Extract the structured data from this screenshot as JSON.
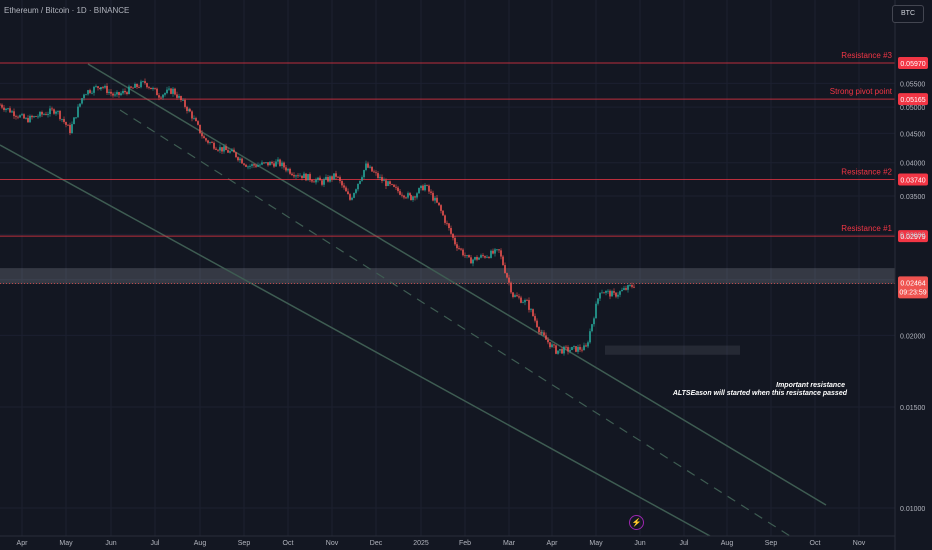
{
  "header": {
    "title": "Ethereum / Bitcoin · 1D · BINANCE",
    "currency_button": "BTC"
  },
  "chart_data": {
    "type": "candlestick",
    "title": "Ethereum / Bitcoin · 1D · BINANCE",
    "y_scale": "log",
    "ylim": [
      0.01,
      0.062
    ],
    "y_ticks": [
      "0.05500",
      "0.05000",
      "0.04500",
      "0.04000",
      "0.03500",
      "0.03000",
      "0.02500",
      "0.02000",
      "0.01500",
      "0.01000"
    ],
    "x_ticks": [
      "Apr",
      "May",
      "Jun",
      "Jul",
      "Aug",
      "Sep",
      "Oct",
      "Nov",
      "Dec",
      "2025",
      "Feb",
      "Mar",
      "Apr",
      "May",
      "Jun",
      "Jul",
      "Aug",
      "Sep",
      "Oct",
      "Nov"
    ],
    "price_path": [
      [
        "Apr",
        0.0505
      ],
      [
        "Apr",
        0.0475
      ],
      [
        "May",
        0.0495
      ],
      [
        "May",
        0.0455
      ],
      [
        "May",
        0.053
      ],
      [
        "Jun",
        0.0545
      ],
      [
        "Jun",
        0.0522
      ],
      [
        "Jul",
        0.0552
      ],
      [
        "Jul",
        0.0525
      ],
      [
        "Jul",
        0.0535
      ],
      [
        "Aug",
        0.049
      ],
      [
        "Aug",
        0.044
      ],
      [
        "Aug",
        0.0425
      ],
      [
        "Sep",
        0.0415
      ],
      [
        "Sep",
        0.0395
      ],
      [
        "Oct",
        0.04
      ],
      [
        "Oct",
        0.0385
      ],
      [
        "Nov",
        0.037
      ],
      [
        "Nov",
        0.038
      ],
      [
        "Nov",
        0.0345
      ],
      [
        "Dec",
        0.0395
      ],
      [
        "Dec",
        0.0375
      ],
      [
        "Dec",
        0.036
      ],
      [
        "2025",
        0.0348
      ],
      [
        "2025",
        0.0365
      ],
      [
        "2025",
        0.0335
      ],
      [
        "Feb",
        0.029
      ],
      [
        "Feb",
        0.027
      ],
      [
        "Mar",
        0.028
      ],
      [
        "Mar",
        0.0235
      ],
      [
        "Mar",
        0.0228
      ],
      [
        "Apr",
        0.02
      ],
      [
        "Apr",
        0.0188
      ],
      [
        "May",
        0.019
      ],
      [
        "May",
        0.024
      ],
      [
        "May",
        0.0235
      ],
      [
        "Jun",
        0.0246
      ]
    ],
    "horizontal_levels": [
      {
        "label": "Resistance  #3",
        "value": "0.05970",
        "color": "#f23645"
      },
      {
        "label": "Strong pivot point",
        "value": "0.05165",
        "color": "#f23645"
      },
      {
        "label": "Resistance #2",
        "value": "0.03740",
        "color": "#f23645"
      },
      {
        "label": "Resistance #1",
        "value": "0.02979",
        "color": "#f23645"
      }
    ],
    "resistance_zone": {
      "low": 0.0246,
      "high": 0.0262
    },
    "support_zone": {
      "low": 0.0185,
      "high": 0.0192
    },
    "annotations": [
      "Important resistance",
      "ALTSEason will started when this resistance passed"
    ],
    "current_price": "0.02464",
    "countdown": "09:23:59",
    "colors": {
      "up": "#26a69a",
      "down": "#ef5350",
      "level": "#f23645",
      "channel": "#3e5c52",
      "background": "#131722"
    }
  }
}
